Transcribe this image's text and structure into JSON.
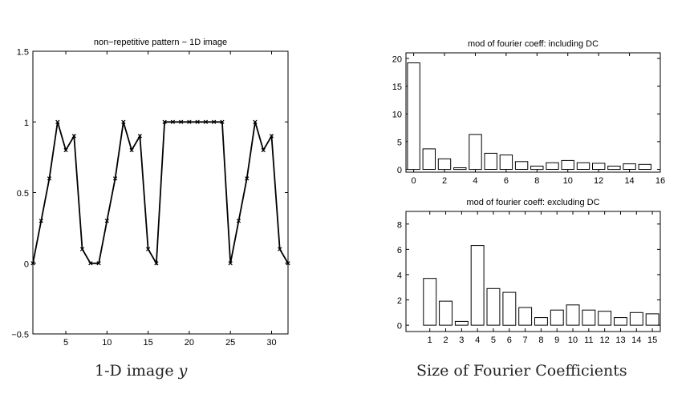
{
  "chart_data": [
    {
      "type": "line",
      "title": "non−repetitive pattern − 1D image",
      "x": [
        1,
        2,
        3,
        4,
        5,
        6,
        7,
        8,
        9,
        10,
        11,
        12,
        13,
        14,
        15,
        16,
        17,
        18,
        19,
        20,
        21,
        22,
        23,
        24,
        25,
        26,
        27,
        28,
        29,
        30,
        31,
        32
      ],
      "y": [
        0,
        0.3,
        0.6,
        1,
        0.8,
        0.9,
        0.1,
        0,
        0,
        0.3,
        0.6,
        1,
        0.8,
        0.9,
        0.1,
        0,
        1,
        1,
        1,
        1,
        1,
        1,
        1,
        1,
        0,
        0.3,
        0.6,
        1,
        0.8,
        0.9,
        0.1,
        0
      ],
      "xlim": [
        1,
        32
      ],
      "ylim": [
        -0.5,
        1.5
      ],
      "xticks": [
        "5",
        "10",
        "15",
        "20",
        "25",
        "30"
      ],
      "yticks": [
        "−0.5",
        "0",
        "0.5",
        "1",
        "1.5"
      ],
      "marker": "x",
      "grid": false
    },
    {
      "type": "bar",
      "title": "mod of fourier coeff: including DC",
      "categories": [
        0,
        1,
        2,
        3,
        4,
        5,
        6,
        7,
        8,
        9,
        10,
        11,
        12,
        13,
        14,
        15
      ],
      "values": [
        19.2,
        3.7,
        1.9,
        0.3,
        6.3,
        2.9,
        2.6,
        1.4,
        0.6,
        1.2,
        1.6,
        1.2,
        1.1,
        0.6,
        1.0,
        0.9
      ],
      "xlim": [
        -0.5,
        16
      ],
      "ylim": [
        -0.5,
        21
      ],
      "xticks": [
        "0",
        "2",
        "4",
        "6",
        "8",
        "10",
        "12",
        "14",
        "16"
      ],
      "yticks": [
        "0",
        "5",
        "10",
        "15",
        "20"
      ],
      "grid": false
    },
    {
      "type": "bar",
      "title": "mod of fourier coeff: excluding DC",
      "categories": [
        1,
        2,
        3,
        4,
        5,
        6,
        7,
        8,
        9,
        10,
        11,
        12,
        13,
        14,
        15
      ],
      "values": [
        3.7,
        1.9,
        0.3,
        6.3,
        2.9,
        2.6,
        1.4,
        0.6,
        1.2,
        1.6,
        1.2,
        1.1,
        0.6,
        1.0,
        0.9
      ],
      "xlim": [
        -0.5,
        15.5
      ],
      "ylim": [
        -0.5,
        9
      ],
      "xticks": [
        "1",
        "2",
        "3",
        "4",
        "5",
        "6",
        "7",
        "8",
        "9",
        "10",
        "11",
        "12",
        "13",
        "14",
        "15"
      ],
      "yticks": [
        "0",
        "2",
        "4",
        "6",
        "8"
      ],
      "grid": false
    }
  ],
  "captions": {
    "left_prefix": "1-D image ",
    "left_var": "y",
    "right": "Size of Fourier Coefficients"
  }
}
